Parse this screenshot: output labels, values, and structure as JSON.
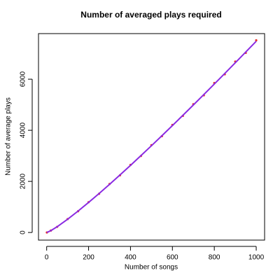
{
  "chart_data": {
    "type": "line",
    "title": "Number of averaged plays required",
    "x_label": "Number of songs",
    "y_label": "Number of average plays",
    "x": [
      1,
      20,
      50,
      100,
      150,
      200,
      250,
      300,
      350,
      400,
      450,
      500,
      550,
      600,
      650,
      700,
      750,
      800,
      850,
      900,
      950,
      1000
    ],
    "series": [
      {
        "color": "#e8302a",
        "marker": "points",
        "values": [
          1,
          75,
          221,
          525,
          832,
          1185,
          1515,
          1898,
          2240,
          2645,
          2995,
          3420,
          3770,
          4210,
          4565,
          5020,
          5370,
          5850,
          6190,
          6690,
          7030,
          7520
        ]
      },
      {
        "color": "#8a2be2",
        "marker": "line",
        "values": [
          1,
          72,
          225,
          519,
          839,
          1176,
          1525,
          1885,
          2253,
          2628,
          3009,
          3396,
          3788,
          4185,
          4586,
          4990,
          5398,
          5810,
          6224,
          6642,
          7062,
          7485
        ]
      }
    ],
    "xlim": [
      -39,
      1040
    ],
    "xticks": [
      0,
      200,
      400,
      600,
      800,
      1000
    ],
    "ylim": [
      -298,
      7784
    ],
    "yticks": [
      0,
      2000,
      4000,
      6000
    ]
  }
}
